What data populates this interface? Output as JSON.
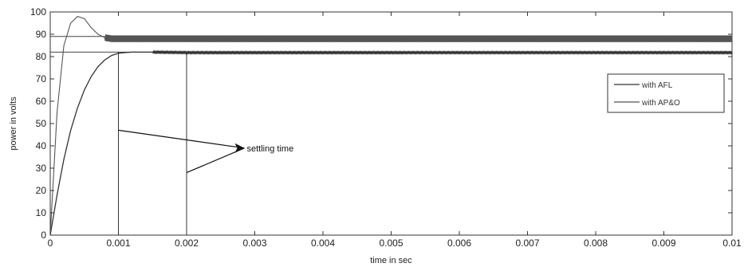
{
  "chart_data": {
    "type": "line",
    "title": "",
    "xlabel": "time in sec",
    "ylabel": "power in volts",
    "xlim": [
      0,
      0.01
    ],
    "ylim": [
      0,
      100
    ],
    "x_ticks": [
      "0",
      "0.001",
      "0.002",
      "0.003",
      "0.004",
      "0.005",
      "0.006",
      "0.007",
      "0.008",
      "0.009",
      "0.01"
    ],
    "y_ticks": [
      "0",
      "10",
      "20",
      "30",
      "40",
      "50",
      "60",
      "70",
      "80",
      "90",
      "100"
    ],
    "grid": false,
    "legend_position": "right",
    "series": [
      {
        "name": "with AFL",
        "x": [
          0,
          0.0001,
          0.0002,
          0.0003,
          0.0004,
          0.0005,
          0.0006,
          0.0007,
          0.0008,
          0.0009,
          0.001,
          0.0011,
          0.0012,
          0.0015,
          0.002,
          0.005,
          0.01
        ],
        "y": [
          0,
          18,
          34,
          47,
          57,
          65,
          71,
          75.5,
          78.5,
          80.5,
          81.5,
          81.8,
          82,
          82,
          81.8,
          81.8,
          81.8
        ],
        "steady_ripple": 0.3
      },
      {
        "name": "with AP&O",
        "x": [
          0,
          0.0001,
          0.0002,
          0.0003,
          0.0004,
          0.0005,
          0.0006,
          0.0007,
          0.0008,
          0.0009,
          0.001,
          0.002,
          0.005,
          0.01
        ],
        "y": [
          0,
          55,
          85,
          95,
          98,
          97,
          93,
          90,
          88.5,
          88,
          88,
          88,
          88,
          88
        ],
        "steady_ripple": 1.5
      }
    ],
    "reference_lines": [
      {
        "type": "horizontal",
        "y": 89
      },
      {
        "type": "horizontal",
        "y": 82
      },
      {
        "type": "vertical",
        "x": 0.001
      },
      {
        "type": "vertical",
        "x": 0.002
      }
    ],
    "annotations": [
      {
        "text": "settling time",
        "x": 0.003,
        "y": 39
      }
    ]
  }
}
